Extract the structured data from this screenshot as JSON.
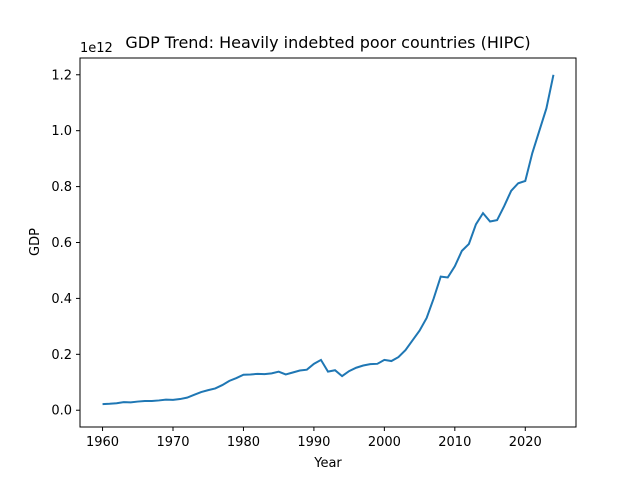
{
  "chart_data": {
    "type": "line",
    "title": "GDP Trend: Heavily indebted poor countries (HIPC)",
    "xlabel": "Year",
    "ylabel": "GDP",
    "y_offset_label": "1e12",
    "xlim": [
      1956.8,
      2027.2
    ],
    "ylim": [
      -0.06,
      1.26
    ],
    "x_ticks": [
      1960,
      1970,
      1980,
      1990,
      2000,
      2010,
      2020
    ],
    "y_ticks": [
      0.0,
      0.2,
      0.4,
      0.6,
      0.8,
      1.0,
      1.2
    ],
    "y_tick_labels": [
      "0.0",
      "0.2",
      "0.4",
      "0.6",
      "0.8",
      "1.0",
      "1.2"
    ],
    "grid": false,
    "line_color": "#1f77b4",
    "series": [
      {
        "x": [
          1960,
          1961,
          1962,
          1963,
          1964,
          1965,
          1966,
          1967,
          1968,
          1969,
          1970,
          1971,
          1972,
          1973,
          1974,
          1975,
          1976,
          1977,
          1978,
          1979,
          1980,
          1981,
          1982,
          1983,
          1984,
          1985,
          1986,
          1987,
          1988,
          1989,
          1990,
          1991,
          1992,
          1993,
          1994,
          1995,
          1996,
          1997,
          1998,
          1999,
          2000,
          2001,
          2002,
          2003,
          2004,
          2005,
          2006,
          2007,
          2008,
          2009,
          2010,
          2011,
          2012,
          2013,
          2014,
          2015,
          2016,
          2017,
          2018,
          2019,
          2020,
          2021,
          2022,
          2023,
          2024
        ],
        "values": [
          0.022,
          0.023,
          0.025,
          0.029,
          0.028,
          0.031,
          0.033,
          0.033,
          0.035,
          0.038,
          0.037,
          0.04,
          0.045,
          0.055,
          0.065,
          0.072,
          0.078,
          0.09,
          0.105,
          0.115,
          0.127,
          0.128,
          0.13,
          0.129,
          0.132,
          0.138,
          0.128,
          0.135,
          0.142,
          0.145,
          0.166,
          0.18,
          0.138,
          0.143,
          0.122,
          0.14,
          0.152,
          0.16,
          0.165,
          0.166,
          0.18,
          0.176,
          0.19,
          0.215,
          0.25,
          0.285,
          0.33,
          0.4,
          0.478,
          0.475,
          0.515,
          0.57,
          0.595,
          0.665,
          0.705,
          0.675,
          0.68,
          0.73,
          0.785,
          0.812,
          0.82,
          0.92,
          1.0,
          1.08,
          1.2
        ]
      }
    ]
  }
}
